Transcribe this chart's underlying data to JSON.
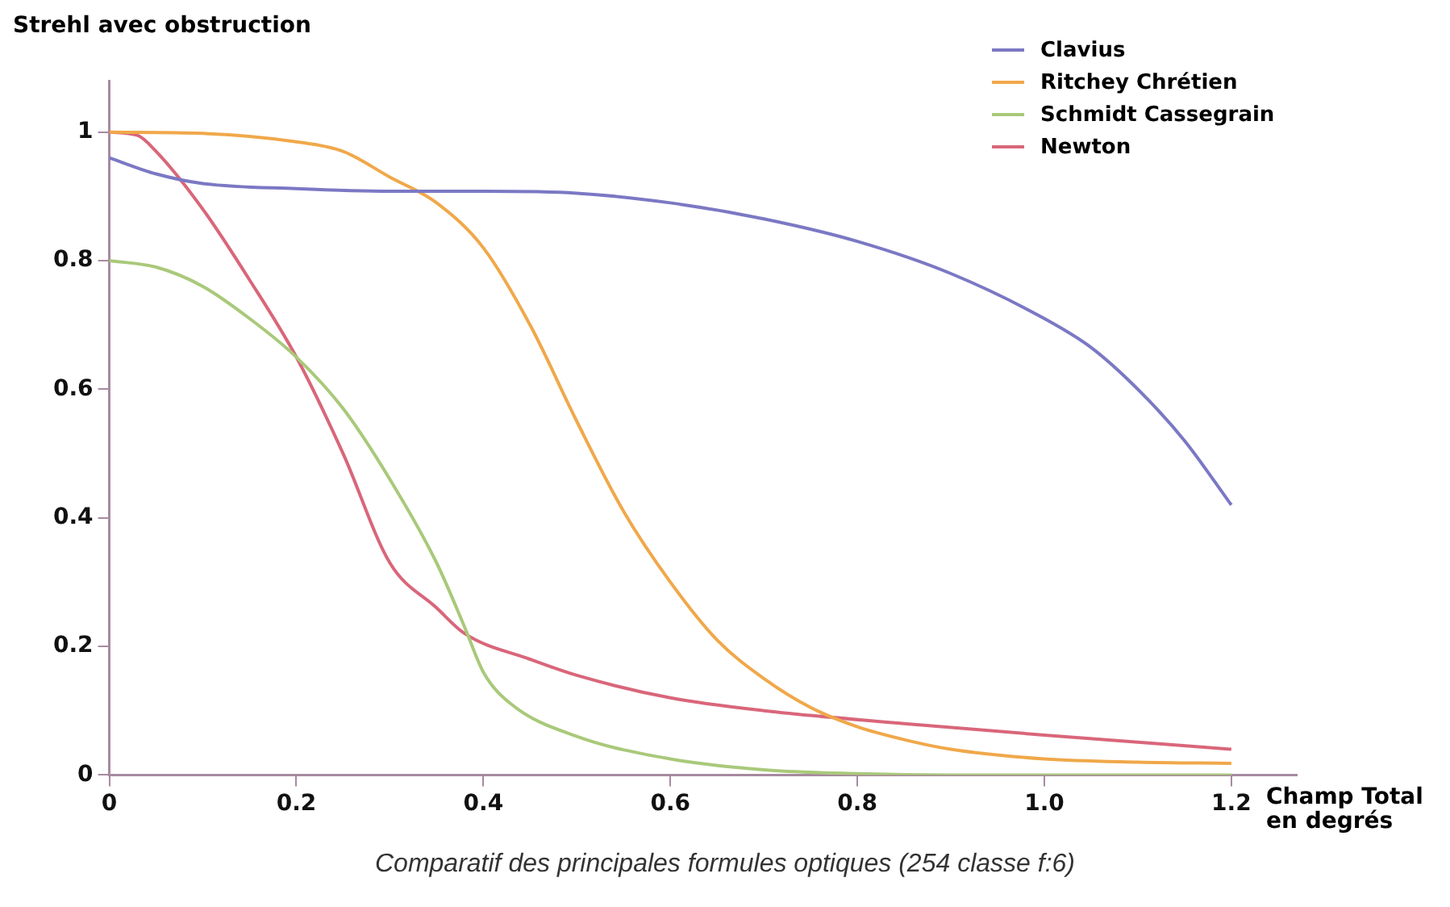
{
  "chart_data": {
    "type": "line",
    "ylabel": "Strehl avec obstruction",
    "xlabel": "Champ Total en degrés",
    "annotations": [
      "Comparatif des principales formules optiques (254 classe f:6)"
    ],
    "xlim": [
      0,
      1.27
    ],
    "ylim": [
      0,
      1.08
    ],
    "xticks": [
      0,
      0.2,
      0.4,
      0.6,
      0.8,
      {
        "value": 1,
        "label": "1.0"
      },
      1.2
    ],
    "yticks": [
      0,
      0.2,
      0.4,
      0.6,
      0.8,
      1
    ],
    "grid": false,
    "legend": "top right",
    "marker": "none",
    "line_style": "solid",
    "series": [
      {
        "name": "Clavius",
        "color": "#7b78c4",
        "x": [
          0,
          0.05,
          0.1,
          0.2,
          0.3,
          0.4,
          0.5,
          0.6,
          0.7,
          0.8,
          0.9,
          1.0,
          1.05,
          1.1,
          1.15,
          1.2
        ],
        "values": [
          0.96,
          0.935,
          0.92,
          0.912,
          0.908,
          0.908,
          0.905,
          0.89,
          0.865,
          0.83,
          0.78,
          0.71,
          0.665,
          0.6,
          0.52,
          0.42
        ]
      },
      {
        "name": "Ritchey Chrétien",
        "color": "#f0a84a",
        "x": [
          0,
          0.1,
          0.2,
          0.25,
          0.3,
          0.35,
          0.4,
          0.45,
          0.5,
          0.55,
          0.6,
          0.65,
          0.7,
          0.75,
          0.8,
          0.85,
          0.9,
          1.0,
          1.1,
          1.2
        ],
        "values": [
          1,
          0.998,
          0.985,
          0.97,
          0.93,
          0.89,
          0.82,
          0.7,
          0.55,
          0.41,
          0.3,
          0.21,
          0.15,
          0.105,
          0.075,
          0.055,
          0.04,
          0.025,
          0.02,
          0.018
        ]
      },
      {
        "name": "Schmidt Cassegrain",
        "color": "#a9c97a",
        "x": [
          0,
          0.05,
          0.1,
          0.15,
          0.2,
          0.25,
          0.3,
          0.35,
          0.38,
          0.4,
          0.43,
          0.5,
          0.6,
          0.7,
          0.8,
          0.9,
          1.2
        ],
        "values": [
          0.8,
          0.79,
          0.76,
          0.71,
          0.65,
          0.57,
          0.46,
          0.33,
          0.23,
          0.16,
          0.11,
          0.06,
          0.025,
          0.008,
          0.002,
          0,
          0
        ]
      },
      {
        "name": "Newton",
        "color": "#d9667a",
        "x": [
          0,
          0.03,
          0.05,
          0.1,
          0.15,
          0.2,
          0.25,
          0.3,
          0.35,
          0.38,
          0.45,
          0.5,
          0.6,
          0.7,
          0.85,
          1.0,
          1.2
        ],
        "values": [
          1,
          0.995,
          0.97,
          0.88,
          0.77,
          0.65,
          0.5,
          0.33,
          0.26,
          0.22,
          0.18,
          0.155,
          0.12,
          0.1,
          0.08,
          0.062,
          0.04
        ]
      }
    ]
  }
}
